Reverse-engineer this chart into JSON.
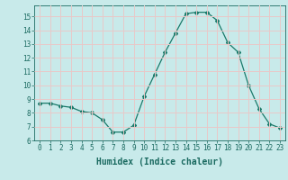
{
  "x": [
    0,
    1,
    2,
    3,
    4,
    5,
    6,
    7,
    8,
    9,
    10,
    11,
    12,
    13,
    14,
    15,
    16,
    17,
    18,
    19,
    20,
    21,
    22,
    23
  ],
  "y": [
    8.7,
    8.7,
    8.5,
    8.4,
    8.1,
    8.0,
    7.5,
    6.6,
    6.6,
    7.1,
    9.2,
    10.8,
    12.4,
    13.8,
    15.2,
    15.3,
    15.3,
    14.7,
    13.1,
    12.4,
    10.0,
    8.3,
    7.2,
    6.9
  ],
  "line_color": "#1a7a6a",
  "marker": "D",
  "marker_size": 2.0,
  "bg_color": "#c8eaea",
  "grid_color": "#e8c8c8",
  "xlabel": "Humidex (Indice chaleur)",
  "xlim": [
    -0.5,
    23.5
  ],
  "ylim": [
    6,
    15.8
  ],
  "yticks": [
    6,
    7,
    8,
    9,
    10,
    11,
    12,
    13,
    14,
    15
  ],
  "xticks": [
    0,
    1,
    2,
    3,
    4,
    5,
    6,
    7,
    8,
    9,
    10,
    11,
    12,
    13,
    14,
    15,
    16,
    17,
    18,
    19,
    20,
    21,
    22,
    23
  ],
  "tick_fontsize": 5.5,
  "xlabel_fontsize": 7.0,
  "label_color": "#1a6a60"
}
